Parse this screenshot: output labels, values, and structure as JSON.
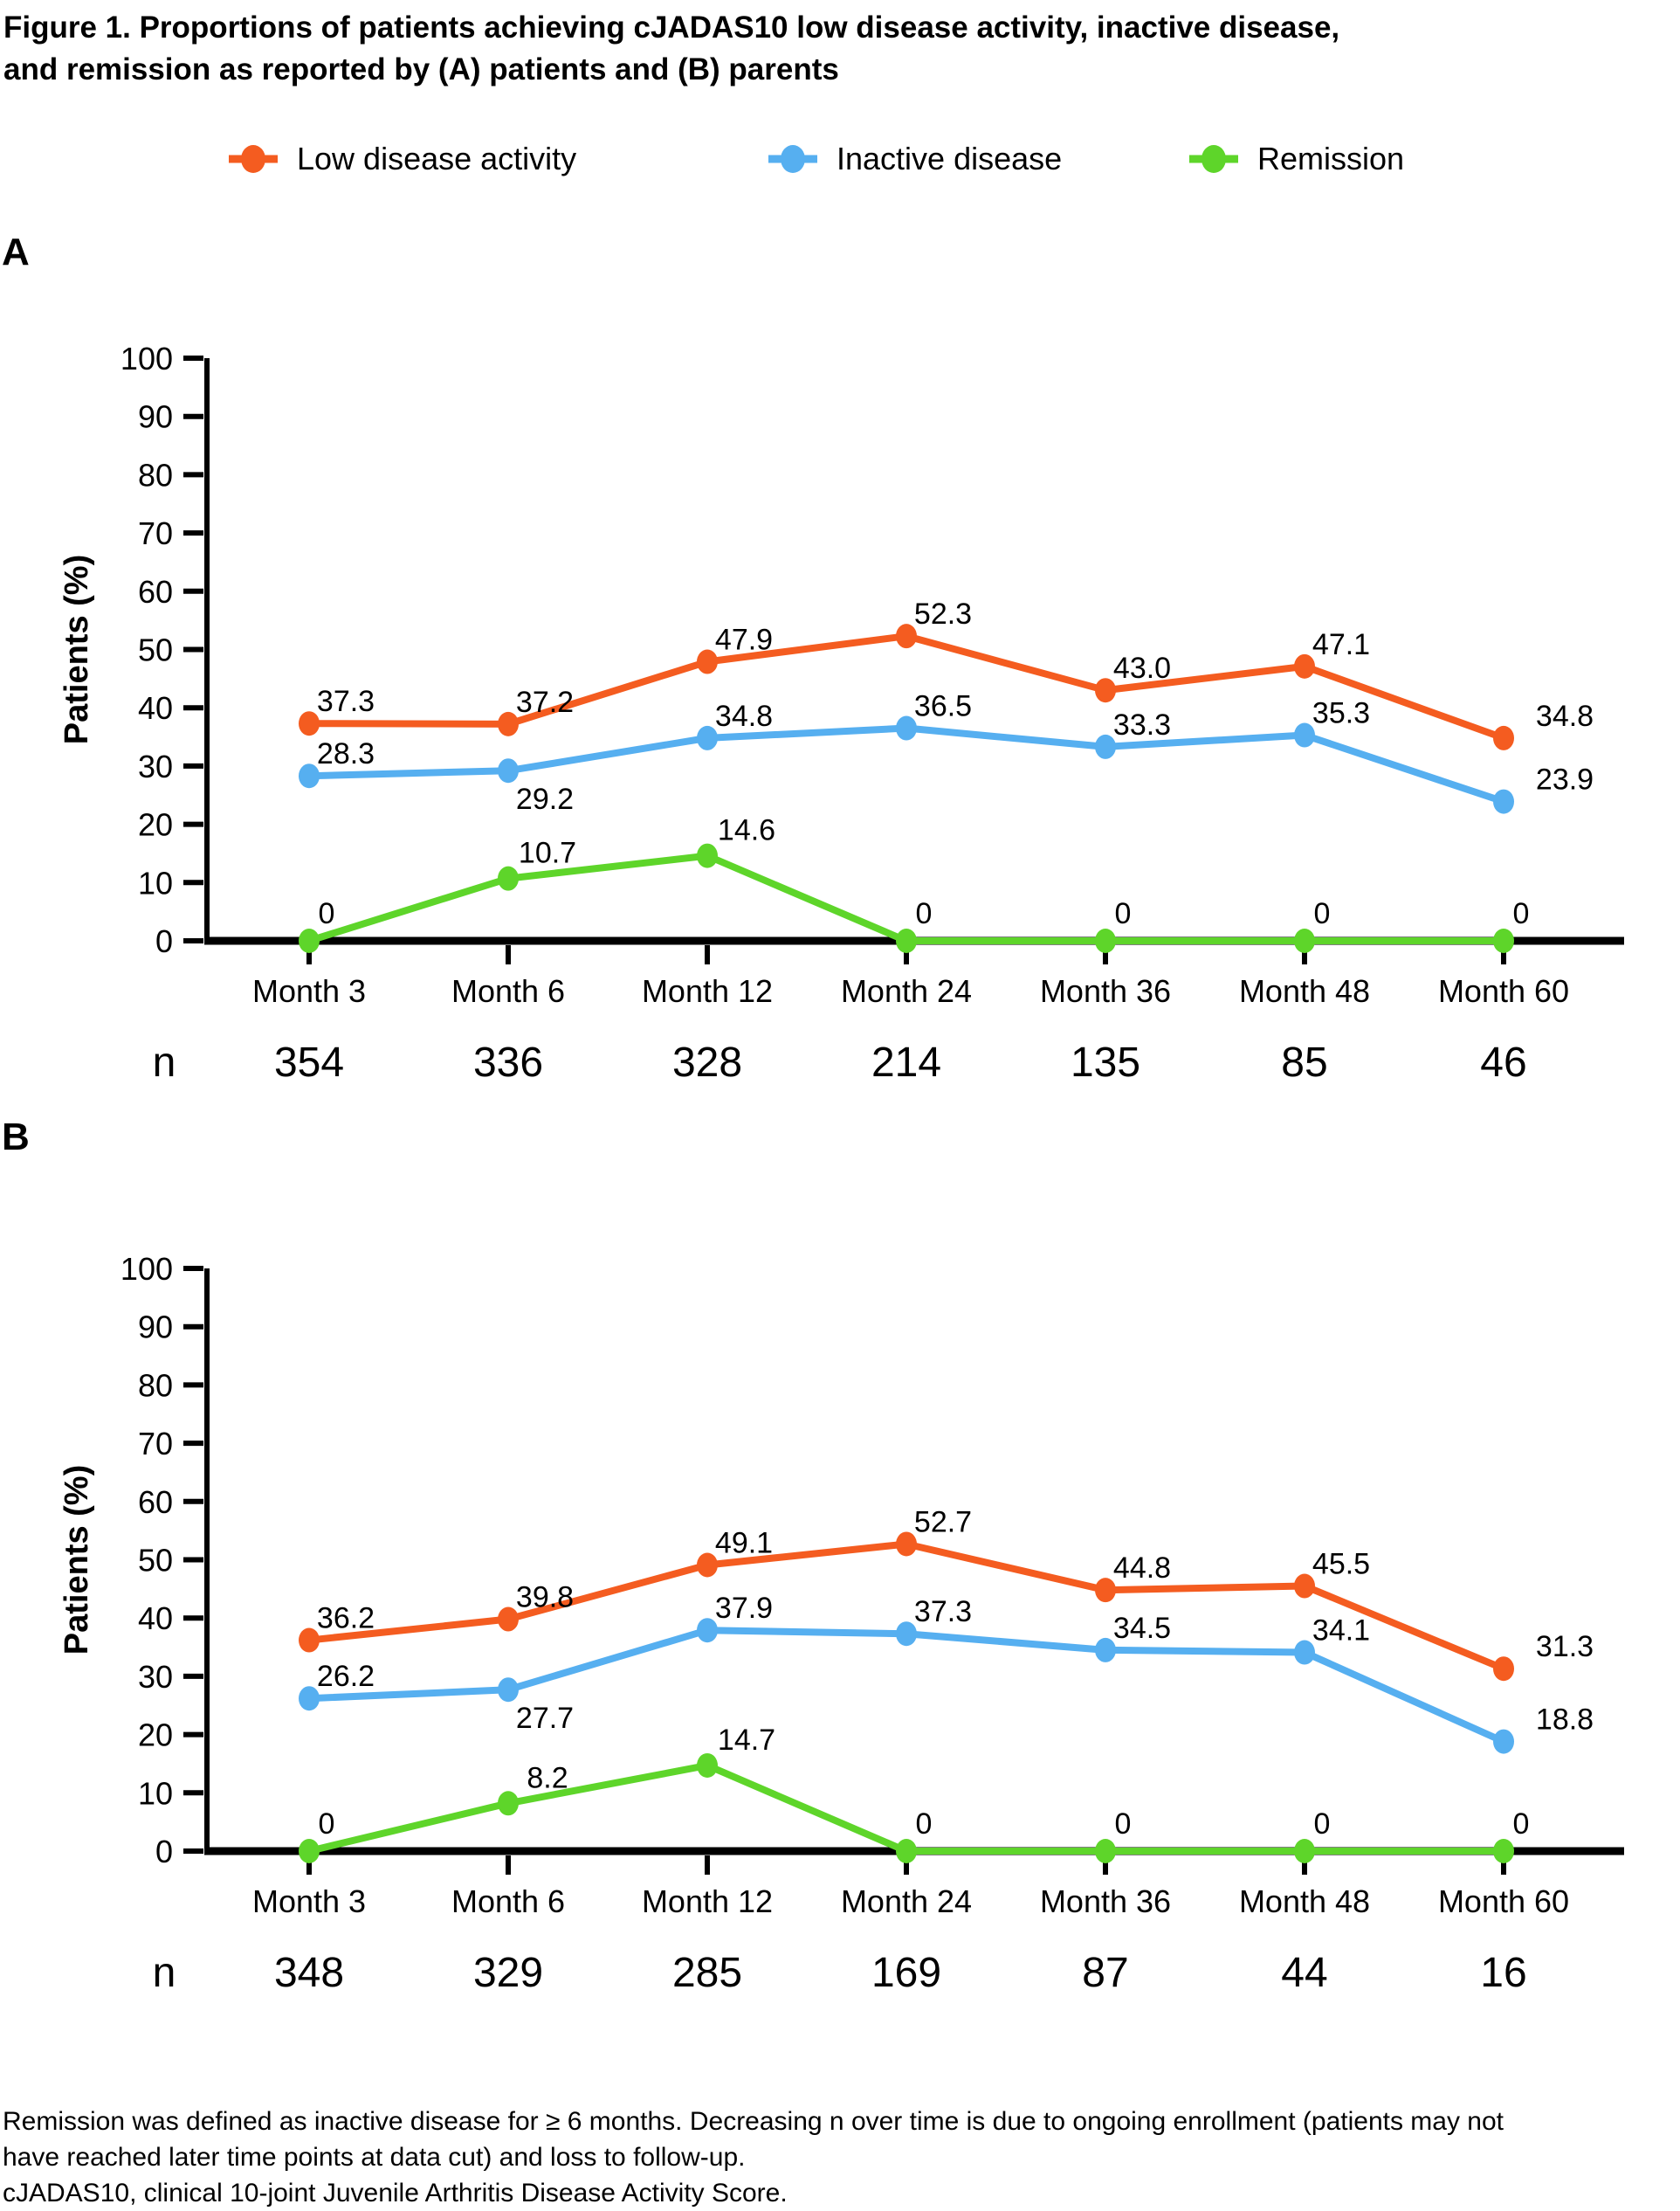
{
  "title": {
    "line1": "Figure 1. Proportions of patients achieving cJADAS10 low disease activity, inactive disease,",
    "line2": "and remission as reported by (A) patients and (B) parents"
  },
  "legend": {
    "items": [
      {
        "label": "Low disease activity",
        "color": "#f45c20"
      },
      {
        "label": "Inactive disease",
        "color": "#56aff0"
      },
      {
        "label": "Remission",
        "color": "#5ed52a"
      }
    ]
  },
  "panels": {
    "a_label": "A",
    "b_label": "B"
  },
  "chart_data": [
    {
      "type": "line",
      "panel": "A",
      "title": "",
      "xlabel": "",
      "ylabel": "Patients (%)",
      "ylim": [
        0,
        100
      ],
      "ytick_step": 10,
      "grid": false,
      "legend_position": "top",
      "categories": [
        "Month 3",
        "Month 6",
        "Month 12",
        "Month 24",
        "Month 36",
        "Month 48",
        "Month 60"
      ],
      "n_row": {
        "label": "n",
        "values": [
          354,
          336,
          328,
          214,
          135,
          85,
          46
        ]
      },
      "series": [
        {
          "name": "Low disease activity",
          "color": "#f45c20",
          "values": [
            37.3,
            37.2,
            47.9,
            52.3,
            43.0,
            47.1,
            34.8
          ],
          "labels_below_indices": []
        },
        {
          "name": "Inactive disease",
          "color": "#56aff0",
          "values": [
            28.3,
            29.2,
            34.8,
            36.5,
            33.3,
            35.3,
            23.9
          ],
          "labels_below_indices": [
            1
          ]
        },
        {
          "name": "Remission",
          "color": "#5ed52a",
          "values": [
            0,
            10.7,
            14.6,
            0,
            0,
            0,
            0
          ],
          "labels_below_indices": []
        }
      ]
    },
    {
      "type": "line",
      "panel": "B",
      "title": "",
      "xlabel": "",
      "ylabel": "Patients (%)",
      "ylim": [
        0,
        100
      ],
      "ytick_step": 10,
      "grid": false,
      "legend_position": "top",
      "categories": [
        "Month 3",
        "Month 6",
        "Month 12",
        "Month 24",
        "Month 36",
        "Month 48",
        "Month 60"
      ],
      "n_row": {
        "label": "n",
        "values": [
          348,
          329,
          285,
          169,
          87,
          44,
          16
        ]
      },
      "series": [
        {
          "name": "Low disease activity",
          "color": "#f45c20",
          "values": [
            36.2,
            39.8,
            49.1,
            52.7,
            44.8,
            45.5,
            31.3
          ],
          "labels_below_indices": []
        },
        {
          "name": "Inactive disease",
          "color": "#56aff0",
          "values": [
            26.2,
            27.7,
            37.9,
            37.3,
            34.5,
            34.1,
            18.8
          ],
          "labels_below_indices": [
            1
          ]
        },
        {
          "name": "Remission",
          "color": "#5ed52a",
          "values": [
            0,
            8.2,
            14.7,
            0,
            0,
            0,
            0
          ],
          "labels_below_indices": []
        }
      ]
    }
  ],
  "footnote": {
    "line1": "Remission was defined as inactive disease for ≥ 6 months. Decreasing n over time is due to ongoing enrollment (patients may not",
    "line2": "have reached later time points at data cut) and loss to follow-up.",
    "line3": "cJADAS10, clinical 10-joint Juvenile Arthritis Disease Activity Score."
  }
}
